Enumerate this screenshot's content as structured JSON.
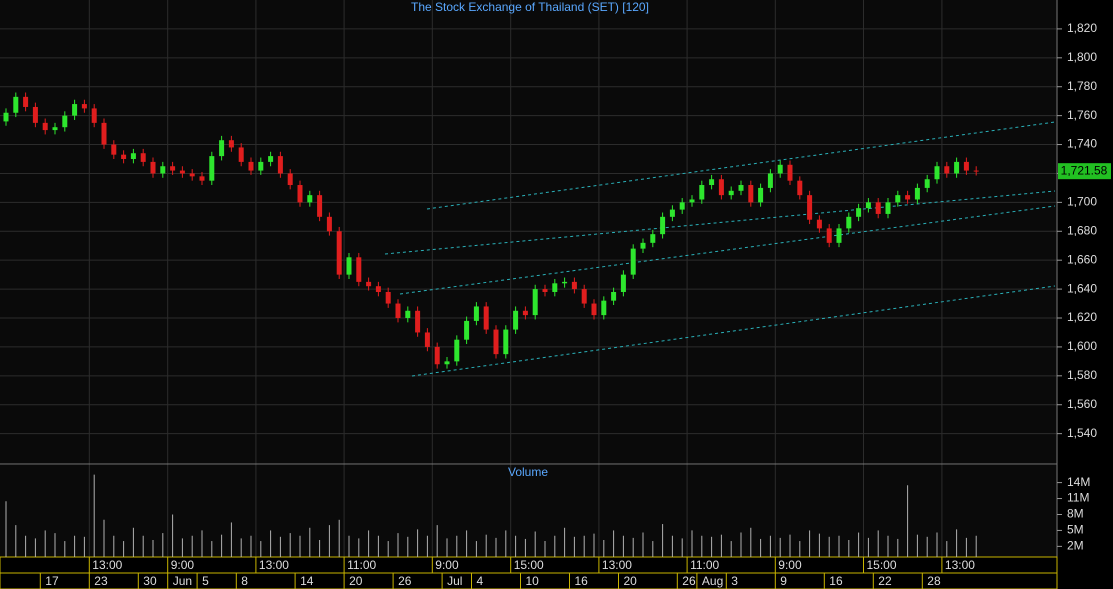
{
  "chart_data": {
    "type": "candlestick",
    "title": "The Stock Exchange of Thailand (SET) [120]",
    "time_labels": [
      null,
      null,
      null,
      null,
      null,
      null,
      null,
      null,
      null,
      "13:00",
      null,
      null,
      null,
      null,
      null,
      null,
      null,
      "9:00",
      null,
      null,
      null,
      null,
      null,
      null,
      null,
      null,
      "13:00",
      null,
      null,
      null,
      null,
      null,
      null,
      null,
      null,
      "11:00",
      null,
      null,
      null,
      null,
      null,
      null,
      null,
      null,
      "9:00",
      null,
      null,
      null,
      null,
      null,
      null,
      null,
      "15:00",
      null,
      null,
      null,
      null,
      null,
      null,
      null,
      null,
      "13:00",
      null,
      null,
      null,
      null,
      null,
      null,
      null,
      null,
      "11:00",
      null,
      null,
      null,
      null,
      null,
      null,
      null,
      null,
      "9:00",
      null,
      null,
      null,
      null,
      null,
      null,
      null,
      null,
      "15:00",
      null,
      null,
      null,
      null,
      null,
      null,
      null,
      "13:00",
      null,
      null,
      null
    ],
    "date_labels": [
      null,
      null,
      null,
      null,
      "17",
      null,
      null,
      null,
      null,
      "23",
      null,
      null,
      null,
      null,
      "30",
      null,
      null,
      "Jun",
      null,
      null,
      "5",
      null,
      null,
      null,
      "8",
      null,
      null,
      null,
      null,
      null,
      "14",
      null,
      null,
      null,
      null,
      "20",
      null,
      null,
      null,
      null,
      "26",
      null,
      null,
      null,
      null,
      "Jul",
      null,
      null,
      "4",
      null,
      null,
      null,
      null,
      "10",
      null,
      null,
      null,
      null,
      "16",
      null,
      null,
      null,
      null,
      "20",
      null,
      null,
      null,
      null,
      null,
      "26",
      null,
      "Aug",
      null,
      null,
      "3",
      null,
      null,
      null,
      null,
      "9",
      null,
      null,
      null,
      null,
      "16",
      null,
      null,
      null,
      null,
      "22",
      null,
      null,
      null,
      null,
      "28",
      null,
      null,
      null,
      null,
      null
    ],
    "open": [
      1756,
      1762,
      1773,
      1766,
      1755,
      1750,
      1752,
      1760,
      1768,
      1765,
      1755,
      1740,
      1733,
      1730,
      1734,
      1728,
      1720,
      1725,
      1722,
      1720,
      1718,
      1715,
      1732,
      1743,
      1738,
      1728,
      1722,
      1728,
      1732,
      1720,
      1712,
      1700,
      1705,
      1690,
      1680,
      1650,
      1662,
      1645,
      1642,
      1638,
      1630,
      1620,
      1625,
      1610,
      1600,
      1588,
      1590,
      1605,
      1618,
      1628,
      1612,
      1595,
      1612,
      1625,
      1622,
      1640,
      1638,
      1644,
      1645,
      1640,
      1630,
      1622,
      1632,
      1638,
      1650,
      1668,
      1672,
      1678,
      1690,
      1695,
      1700,
      1702,
      1712,
      1716,
      1705,
      1708,
      1712,
      1700,
      1710,
      1720,
      1726,
      1715,
      1705,
      1688,
      1682,
      1672,
      1682,
      1690,
      1696,
      1700,
      1692,
      1700,
      1705,
      1702,
      1710,
      1716,
      1725,
      1720,
      1728,
      1722
    ],
    "high": [
      1765,
      1776,
      1776,
      1769,
      1758,
      1755,
      1763,
      1771,
      1771,
      1768,
      1758,
      1743,
      1736,
      1737,
      1737,
      1731,
      1728,
      1728,
      1725,
      1723,
      1721,
      1735,
      1746,
      1746,
      1741,
      1731,
      1731,
      1735,
      1735,
      1723,
      1715,
      1708,
      1708,
      1693,
      1683,
      1665,
      1665,
      1648,
      1645,
      1641,
      1633,
      1628,
      1628,
      1613,
      1603,
      1593,
      1608,
      1621,
      1631,
      1631,
      1615,
      1615,
      1628,
      1628,
      1643,
      1643,
      1647,
      1648,
      1648,
      1643,
      1633,
      1635,
      1641,
      1653,
      1671,
      1675,
      1681,
      1693,
      1698,
      1703,
      1705,
      1715,
      1719,
      1719,
      1711,
      1715,
      1715,
      1713,
      1723,
      1729,
      1729,
      1718,
      1708,
      1691,
      1685,
      1685,
      1693,
      1699,
      1703,
      1703,
      1703,
      1708,
      1708,
      1713,
      1719,
      1728,
      1728,
      1731,
      1731,
      1725
    ],
    "low": [
      1753,
      1759,
      1763,
      1752,
      1747,
      1747,
      1749,
      1757,
      1762,
      1752,
      1737,
      1730,
      1727,
      1727,
      1725,
      1717,
      1717,
      1719,
      1717,
      1715,
      1712,
      1712,
      1729,
      1735,
      1725,
      1719,
      1719,
      1725,
      1717,
      1709,
      1697,
      1697,
      1687,
      1677,
      1647,
      1647,
      1642,
      1639,
      1635,
      1627,
      1617,
      1617,
      1607,
      1597,
      1585,
      1585,
      1587,
      1602,
      1615,
      1609,
      1592,
      1592,
      1609,
      1619,
      1619,
      1635,
      1635,
      1641,
      1637,
      1627,
      1619,
      1619,
      1629,
      1635,
      1647,
      1665,
      1669,
      1675,
      1687,
      1692,
      1697,
      1699,
      1709,
      1702,
      1702,
      1705,
      1697,
      1697,
      1707,
      1717,
      1712,
      1702,
      1685,
      1679,
      1669,
      1669,
      1679,
      1687,
      1693,
      1689,
      1689,
      1697,
      1699,
      1699,
      1707,
      1713,
      1717,
      1717,
      1719,
      1718.58
    ],
    "close": [
      1762,
      1773,
      1766,
      1755,
      1750,
      1752,
      1760,
      1768,
      1765,
      1755,
      1740,
      1733,
      1730,
      1734,
      1728,
      1720,
      1725,
      1722,
      1720,
      1718,
      1715,
      1732,
      1743,
      1738,
      1728,
      1722,
      1728,
      1732,
      1720,
      1712,
      1700,
      1705,
      1690,
      1680,
      1650,
      1662,
      1645,
      1642,
      1638,
      1630,
      1620,
      1625,
      1610,
      1600,
      1588,
      1590,
      1605,
      1618,
      1628,
      1612,
      1595,
      1612,
      1625,
      1622,
      1640,
      1638,
      1644,
      1645,
      1640,
      1630,
      1622,
      1632,
      1638,
      1650,
      1668,
      1672,
      1678,
      1690,
      1695,
      1700,
      1702,
      1712,
      1716,
      1705,
      1708,
      1712,
      1700,
      1710,
      1720,
      1726,
      1715,
      1705,
      1688,
      1682,
      1672,
      1682,
      1690,
      1696,
      1700,
      1692,
      1700,
      1705,
      1702,
      1710,
      1716,
      1725,
      1720,
      1728,
      1722,
      1721.58
    ],
    "last_label": "1,721.58",
    "colors": {
      "up": "#2ee62e",
      "down": "#e01e1e"
    },
    "grid": true,
    "ylim": [
      1519,
      1840
    ],
    "yticks": [
      {
        "value": 1540,
        "label": "1,540"
      },
      {
        "value": 1560,
        "label": "1,560"
      },
      {
        "value": 1580,
        "label": "1,580"
      },
      {
        "value": 1600,
        "label": "1,600"
      },
      {
        "value": 1620,
        "label": "1,620"
      },
      {
        "value": 1640,
        "label": "1,640"
      },
      {
        "value": 1660,
        "label": "1,660"
      },
      {
        "value": 1680,
        "label": "1,680"
      },
      {
        "value": 1700,
        "label": "1,700"
      },
      {
        "value": 1720,
        "label": "1,720"
      },
      {
        "value": 1740,
        "label": "1,740"
      },
      {
        "value": 1760,
        "label": "1,760"
      },
      {
        "value": 1780,
        "label": "1,780"
      },
      {
        "value": 1800,
        "label": "1,800"
      },
      {
        "value": 1820,
        "label": "1,820"
      }
    ],
    "volume": {
      "title": "Volume",
      "color": "#b0b0b0",
      "ylim": [
        0,
        17500000
      ],
      "yticks": [
        {
          "value": 2000000,
          "label": "2M"
        },
        {
          "value": 5000000,
          "label": "5M"
        },
        {
          "value": 8000000,
          "label": "8M"
        },
        {
          "value": 11000000,
          "label": "11M"
        },
        {
          "value": 14000000,
          "label": "14M"
        }
      ],
      "values": [
        10500000,
        6000000,
        4000000,
        3500000,
        5000000,
        4500000,
        3000000,
        4000000,
        3800000,
        15500000,
        7000000,
        4000000,
        3000000,
        5500000,
        4000000,
        3200000,
        4500000,
        8000000,
        3500000,
        4000000,
        5000000,
        3000000,
        4200000,
        6500000,
        3500000,
        4000000,
        3000000,
        5000000,
        3800000,
        4500000,
        4000000,
        5500000,
        3200000,
        6000000,
        7000000,
        4000000,
        3500000,
        5000000,
        4000000,
        3000000,
        4500000,
        3800000,
        5200000,
        4000000,
        6000000,
        3500000,
        4000000,
        5000000,
        3000000,
        4200000,
        3600000,
        5000000,
        4000000,
        3400000,
        4800000,
        3000000,
        4000000,
        5500000,
        3800000,
        4000000,
        4400000,
        3200000,
        5000000,
        4000000,
        3600000,
        4600000,
        3000000,
        6200000,
        4000000,
        3500000,
        5000000,
        4000000,
        3800000,
        4200000,
        3000000,
        4600000,
        5500000,
        3400000,
        4000000,
        3600000,
        4200000,
        3000000,
        5000000,
        4400000,
        3800000,
        4000000,
        3200000,
        4600000,
        3600000,
        5000000,
        4000000,
        3400000,
        13500000,
        4200000,
        3800000,
        4600000,
        3000000,
        5200000,
        3600000,
        4000000
      ]
    }
  }
}
